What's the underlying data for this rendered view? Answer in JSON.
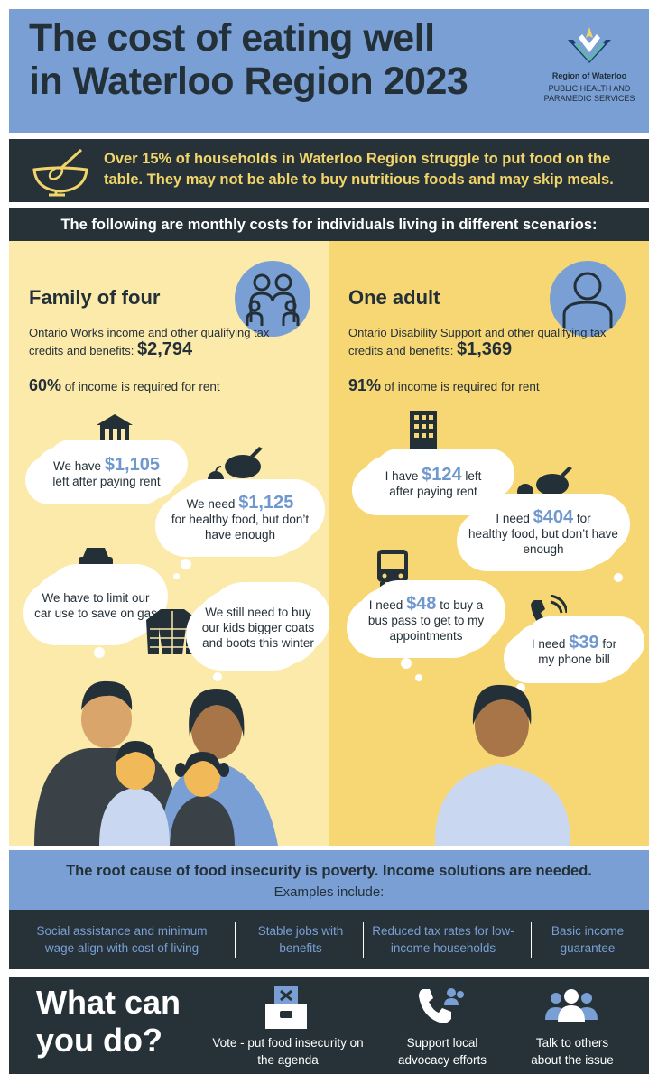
{
  "header": {
    "title_line1": "The cost of eating well",
    "title_line2": "in Waterloo Region 2023",
    "logo_name": "Region of Waterloo",
    "logo_dept_line1": "PUBLIC HEALTH AND",
    "logo_dept_line2": "PARAMEDIC SERVICES"
  },
  "intro": {
    "text": "Over 15% of households in Waterloo Region struggle to put food on the table. They may not be able to buy nutritious foods and may skip meals.",
    "icon": "bowl-whisk-icon"
  },
  "subheading": "The following are monthly costs for individuals living in different scenarios:",
  "family": {
    "heading": "Family of four",
    "income_text": "Ontario Works income and other qualifying tax credits and benefits:",
    "income_amount": "$2,794",
    "rent_pct": "60%",
    "rent_text": "of income is required for rent",
    "thoughts": {
      "left_pre": "We have",
      "left_amount": "$1,105",
      "left_post": "left after paying rent",
      "food_pre": "We need",
      "food_amount": "$1,125",
      "food_post": "for healthy food, but don’t have enough",
      "car": "We have to limit our car use to save on gas",
      "coats": "We still need to buy our kids bigger coats and boots this winter"
    }
  },
  "adult": {
    "heading": "One adult",
    "income_text": "Ontario Disability Support and other qualifying tax credits and benefits:",
    "income_amount": "$1,369",
    "rent_pct": "91%",
    "rent_text": "of income is required for rent",
    "thoughts": {
      "left_pre": "I have",
      "left_amount": "$124",
      "left_post_inline": "left",
      "left_post": "after paying rent",
      "food_pre": "I need",
      "food_amount": "$404",
      "food_post_inline": "for",
      "food_post": "healthy food, but don’t have enough",
      "bus_pre": "I need",
      "bus_amount": "$48",
      "bus_post_inline": "to buy a",
      "bus_post": "bus pass to get to my appointments",
      "phone_pre": "I need",
      "phone_amount": "$39",
      "phone_post_inline": "for",
      "phone_post": "my phone bill"
    }
  },
  "root_cause": {
    "line1": "The root cause of food insecurity is poverty. Income solutions are needed.",
    "line2": "Examples include:"
  },
  "solutions": [
    "Social assistance and minimum wage align with cost of living",
    "Stable jobs with benefits",
    "Reduced tax rates for low-income households",
    "Basic income guarantee"
  ],
  "action": {
    "title_line1": "What can",
    "title_line2": "you do?",
    "items": [
      "Vote - put food insecurity on the agenda",
      "Support local advocacy efforts",
      "Talk to others about the issue"
    ]
  },
  "colors": {
    "blue": "#7a9fd4",
    "dark": "#263238",
    "yellow": "#f2d56a",
    "left_bg": "#fbeaaa",
    "right_bg": "#f7d774"
  }
}
